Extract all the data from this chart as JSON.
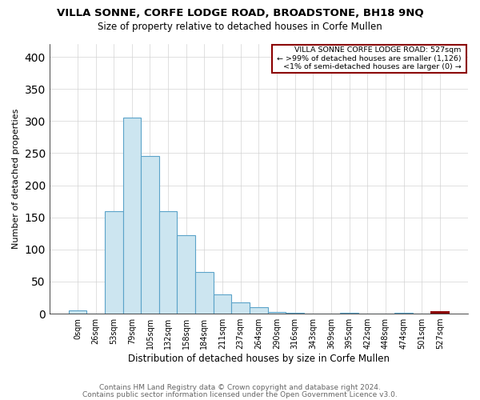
{
  "title": "VILLA SONNE, CORFE LODGE ROAD, BROADSTONE, BH18 9NQ",
  "subtitle": "Size of property relative to detached houses in Corfe Mullen",
  "xlabel": "Distribution of detached houses by size in Corfe Mullen",
  "ylabel": "Number of detached properties",
  "categories": [
    "0sqm",
    "26sqm",
    "53sqm",
    "79sqm",
    "105sqm",
    "132sqm",
    "158sqm",
    "184sqm",
    "211sqm",
    "237sqm",
    "264sqm",
    "290sqm",
    "316sqm",
    "343sqm",
    "369sqm",
    "395sqm",
    "422sqm",
    "448sqm",
    "474sqm",
    "501sqm",
    "527sqm"
  ],
  "values": [
    5,
    0,
    160,
    305,
    245,
    160,
    122,
    65,
    30,
    18,
    10,
    3,
    1,
    0,
    0,
    1,
    0,
    0,
    1,
    0,
    3
  ],
  "highlight_index": 20,
  "bar_color_normal_fill": "#cce5f0",
  "bar_color_normal_edge": "#5ba3c9",
  "bar_color_highlight_fill": "#cce5f0",
  "bar_color_highlight_edge": "#8b0000",
  "legend_title": "VILLA SONNE CORFE LODGE ROAD: 527sqm",
  "legend_line1": "← >99% of detached houses are smaller (1,126)",
  "legend_line2": "<1% of semi-detached houses are larger (0) →",
  "footer1": "Contains HM Land Registry data © Crown copyright and database right 2024.",
  "footer2": "Contains public sector information licensed under the Open Government Licence v3.0.",
  "ylim": [
    0,
    420
  ],
  "yticks": [
    0,
    50,
    100,
    150,
    200,
    250,
    300,
    350,
    400
  ]
}
